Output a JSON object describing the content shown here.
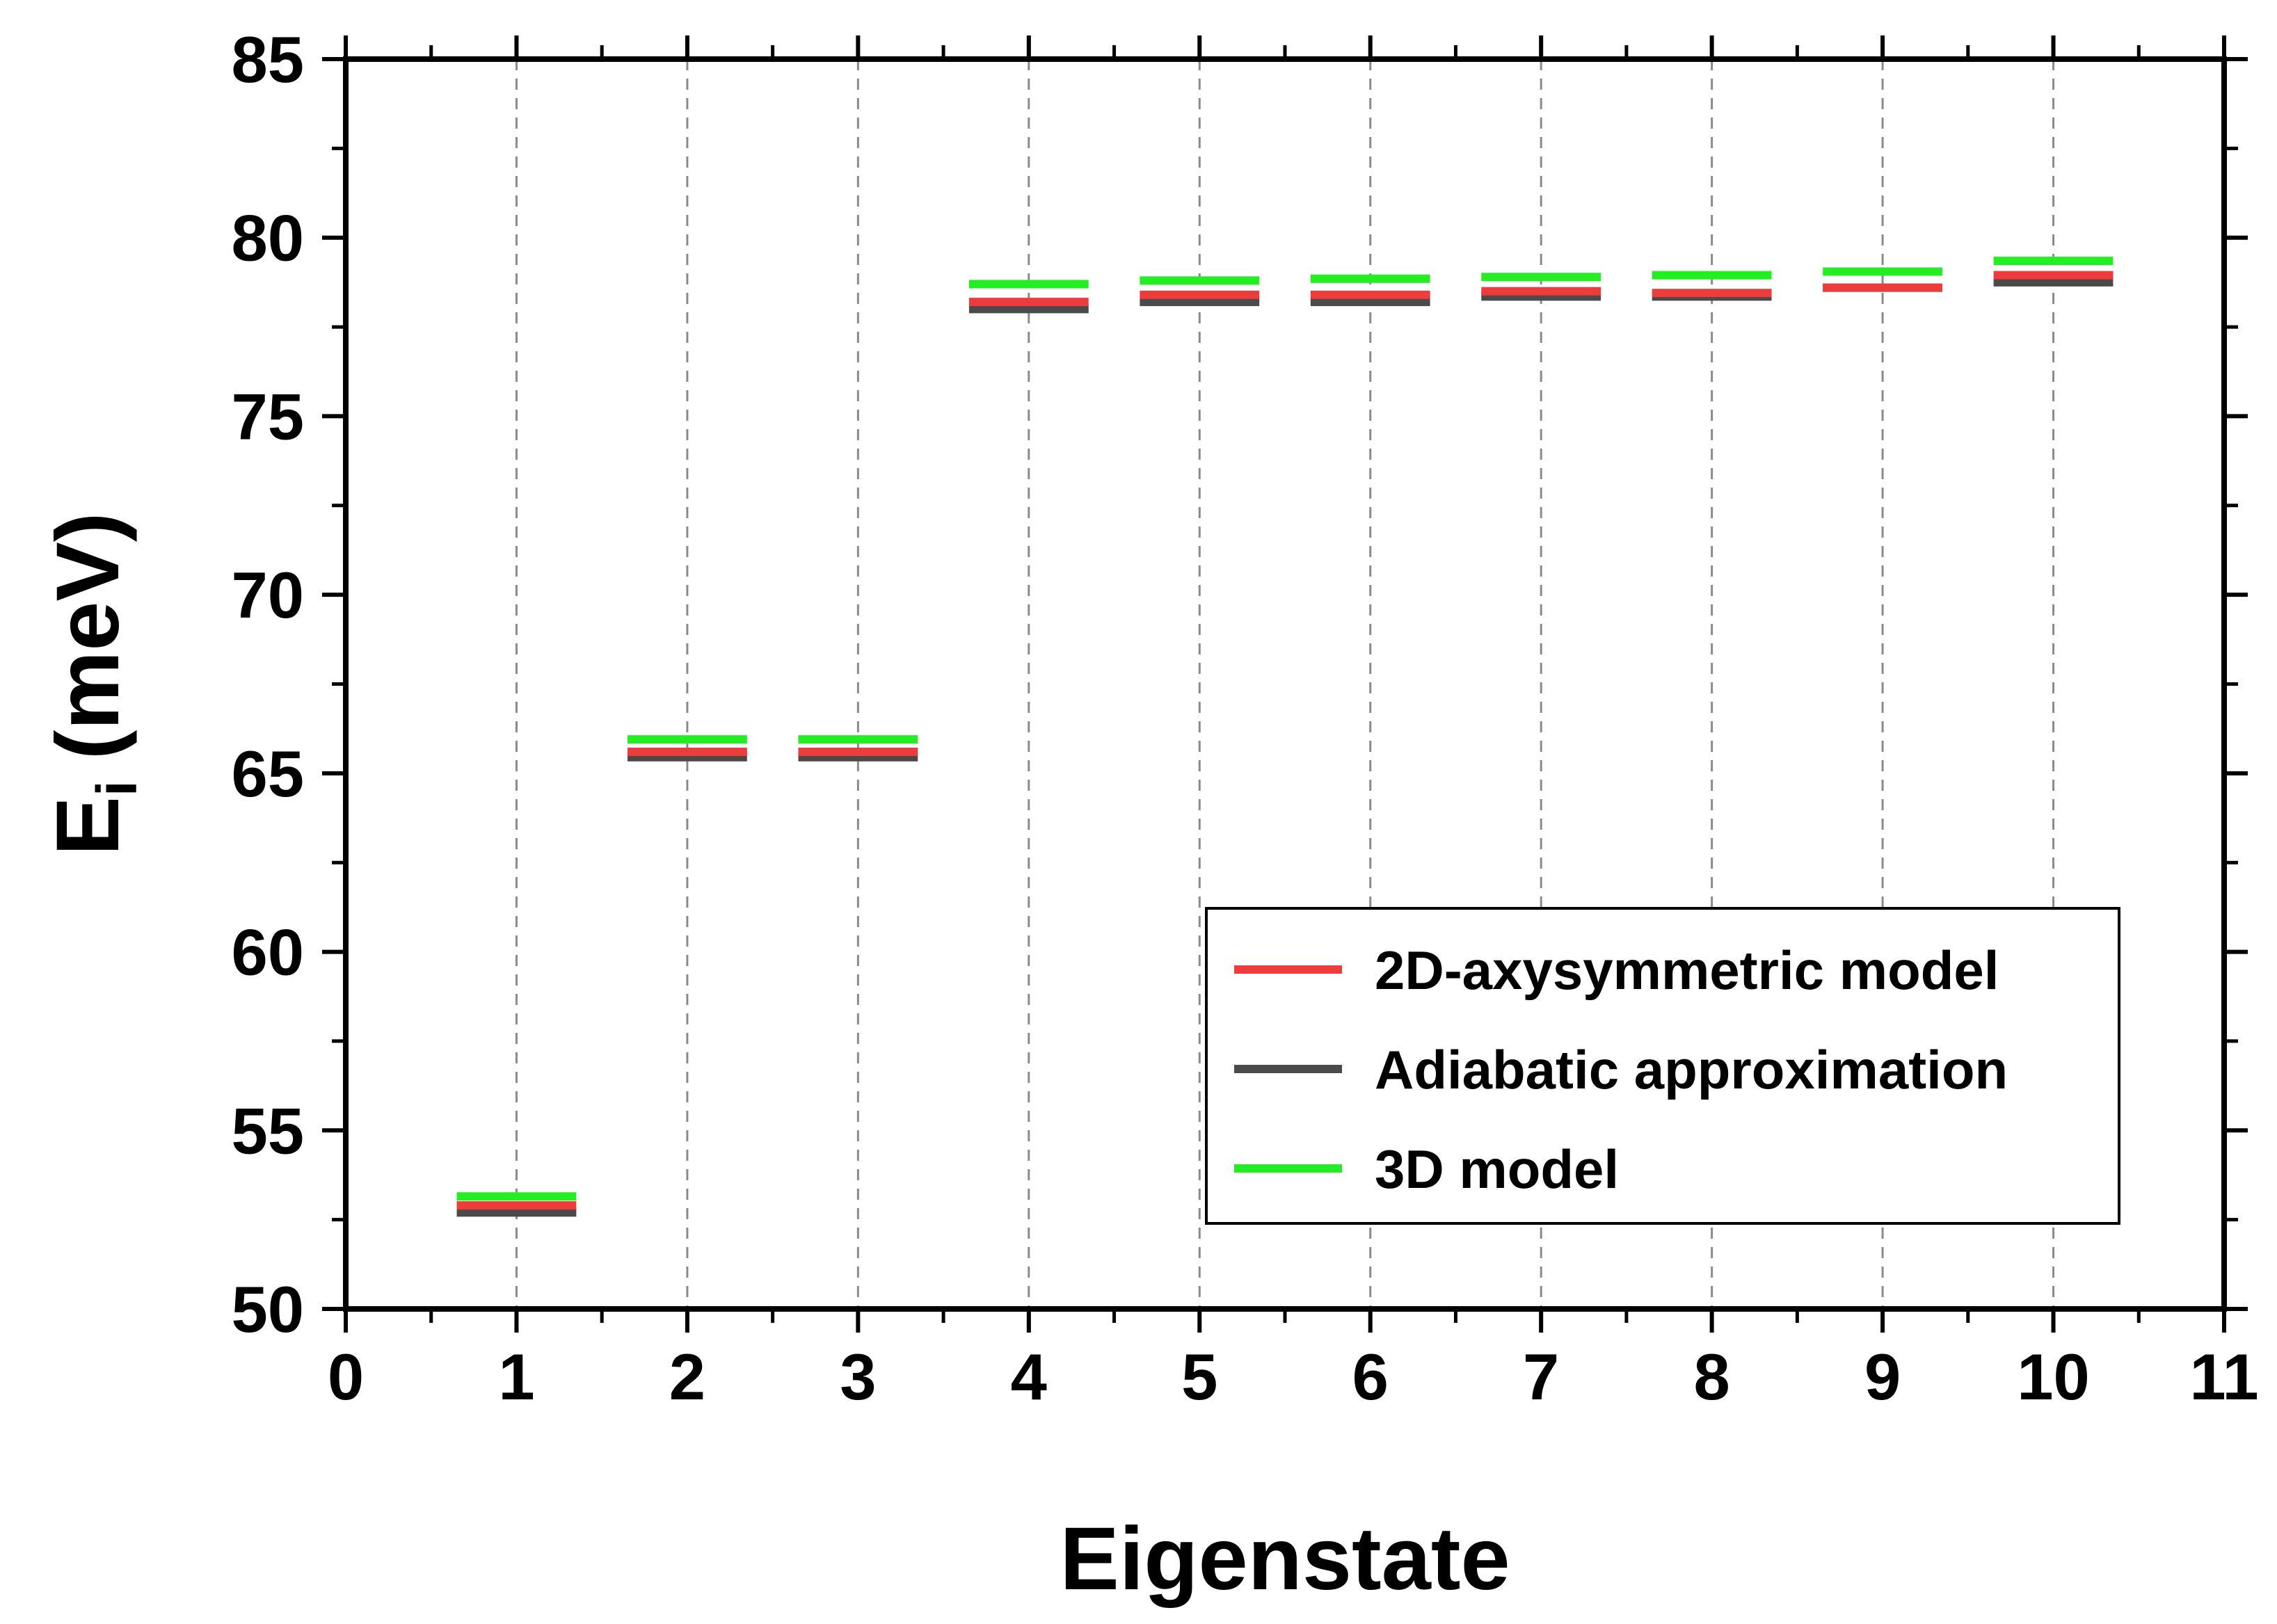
{
  "chart_data": {
    "type": "scatter",
    "xlabel": "Eigenstate",
    "ylabel_main": "E",
    "ylabel_sub": "i",
    "ylabel_unit": "(meV)",
    "xlim": [
      0,
      11
    ],
    "ylim": [
      50,
      85
    ],
    "xticks": [
      0,
      1,
      2,
      3,
      4,
      5,
      6,
      7,
      8,
      9,
      10,
      11
    ],
    "yticks": [
      50,
      55,
      60,
      65,
      70,
      75,
      80,
      85
    ],
    "vertical_dashed_grid_at": [
      1,
      2,
      3,
      4,
      5,
      6,
      7,
      8,
      9,
      10
    ],
    "marker": "horizontal line segment",
    "legend_position": "lower-right",
    "series": [
      {
        "name": "2D-axysymmetric model",
        "color": "#ee3b3b",
        "x": [
          1,
          2,
          3,
          4,
          5,
          6,
          7,
          8,
          9,
          10
        ],
        "y": [
          52.9,
          65.6,
          65.6,
          78.2,
          78.4,
          78.4,
          78.5,
          78.45,
          78.6,
          78.95
        ]
      },
      {
        "name": "Adiabatic approximation",
        "color": "#4a4a4a",
        "x": [
          1,
          2,
          3,
          4,
          5,
          6,
          7,
          8,
          9,
          10
        ],
        "y": [
          52.7,
          65.45,
          65.45,
          78.0,
          78.2,
          78.2,
          78.35,
          78.35,
          78.6,
          78.75
        ]
      },
      {
        "name": "3D model",
        "color": "#22ee22",
        "x": [
          1,
          2,
          3,
          4,
          5,
          6,
          7,
          8,
          9,
          10
        ],
        "y": [
          53.15,
          65.95,
          65.95,
          78.7,
          78.8,
          78.85,
          78.9,
          78.95,
          79.05,
          79.35
        ]
      }
    ]
  }
}
